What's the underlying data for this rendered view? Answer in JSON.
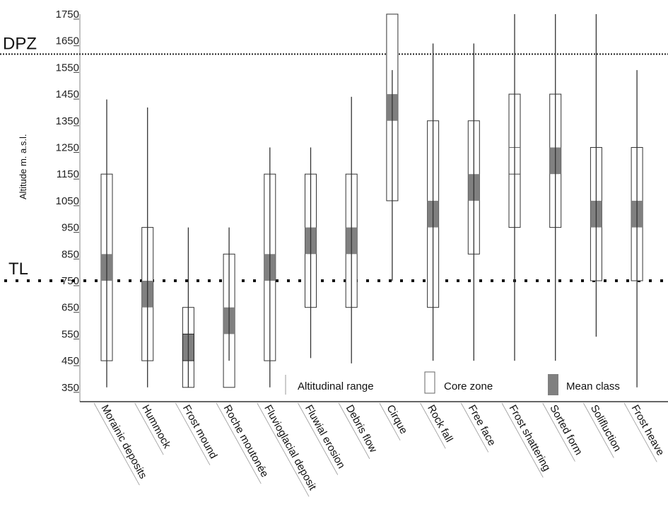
{
  "chart_data": {
    "type": "box-range",
    "title": "",
    "xlabel": "",
    "ylabel": "Altitude m. a.s.l.",
    "ylim": [
      300,
      1750
    ],
    "yticks": [
      1750,
      1650,
      1550,
      1450,
      1350,
      1250,
      1150,
      1050,
      950,
      850,
      750,
      650,
      550,
      450,
      350
    ],
    "grid": false,
    "reference_lines": [
      {
        "label": "DPZ",
        "value": 1600,
        "style": "dotted-fine"
      },
      {
        "label": "TL",
        "value": 750,
        "style": "dotted-bold"
      }
    ],
    "legend": {
      "position": "bottom-right",
      "items": [
        {
          "key": "range",
          "label": "Altitudinal range"
        },
        {
          "key": "core",
          "label": "Core zone"
        },
        {
          "key": "mean",
          "label": "Mean class"
        }
      ]
    },
    "colors": {
      "mean_fill": "#808080",
      "stroke": "#333333",
      "dpz_line": "#222222",
      "tl_line": "#111111"
    },
    "categories": [
      "Morainic deposits",
      "Hummock",
      "Frost mound",
      "Roche moutonée",
      "Fluvioglacial deposit",
      "Fluwial erosion",
      "Debris flow",
      "Cirque",
      "Rock fall",
      "Free face",
      "Frost shattering",
      "Sorted form",
      "Solifluction",
      "Frost heave"
    ],
    "series": [
      {
        "name": "Altitudinal range",
        "values": [
          [
            350,
            1430
          ],
          [
            350,
            1400
          ],
          [
            350,
            950
          ],
          [
            450,
            950
          ],
          [
            350,
            1250
          ],
          [
            460,
            1250
          ],
          [
            440,
            1440
          ],
          [
            750,
            1540
          ],
          [
            450,
            1640
          ],
          [
            450,
            1640
          ],
          [
            450,
            1750
          ],
          [
            450,
            1750
          ],
          [
            540,
            1750
          ],
          [
            350,
            1540
          ]
        ]
      },
      {
        "name": "Core zone",
        "values": [
          [
            450,
            1150
          ],
          [
            450,
            950
          ],
          [
            350,
            650
          ],
          [
            350,
            850
          ],
          [
            450,
            1150
          ],
          [
            650,
            1150
          ],
          [
            650,
            1150
          ],
          [
            1050,
            1750
          ],
          [
            650,
            1350
          ],
          [
            850,
            1350
          ],
          [
            950,
            1450
          ],
          [
            950,
            1450
          ],
          [
            750,
            1250
          ],
          [
            750,
            1250
          ]
        ]
      },
      {
        "name": "Mean class",
        "values": [
          [
            750,
            850
          ],
          [
            650,
            750
          ],
          [
            450,
            550
          ],
          [
            550,
            650
          ],
          [
            750,
            850
          ],
          [
            850,
            950
          ],
          [
            850,
            950
          ],
          [
            1350,
            1450
          ],
          [
            950,
            1050
          ],
          [
            1050,
            1150
          ],
          [
            1150,
            1250
          ],
          [
            1150,
            1250
          ],
          [
            950,
            1050
          ],
          [
            950,
            1050
          ]
        ],
        "filled": [
          true,
          true,
          true,
          true,
          true,
          true,
          true,
          true,
          true,
          true,
          false,
          true,
          true,
          true
        ]
      }
    ]
  }
}
